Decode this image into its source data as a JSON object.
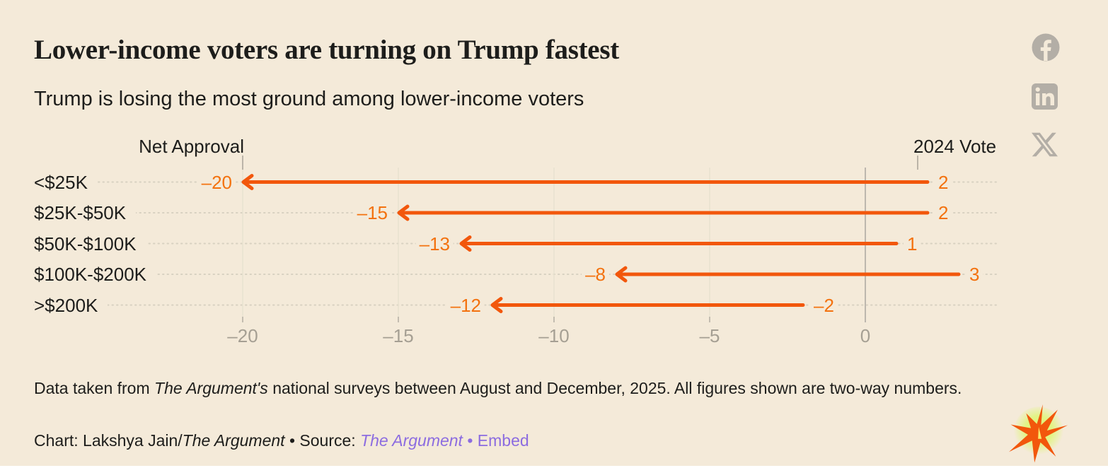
{
  "header": {
    "title": "Lower-income voters are turning on Trump fastest",
    "subtitle": "Trump is losing the most ground among lower-income voters"
  },
  "share": {
    "icons": [
      "facebook",
      "linkedin",
      "x-twitter"
    ]
  },
  "chart_data": {
    "type": "arrow",
    "title": "Lower-income voters are turning on Trump fastest",
    "subtitle": "Trump is losing the most ground among lower-income voters",
    "categories": [
      "<$25K",
      "$25K-$50K",
      "$50K-$100K",
      "$100K-$200K",
      ">$200K"
    ],
    "series": [
      {
        "name": "2024 Vote",
        "values": [
          2,
          2,
          1,
          3,
          -2
        ]
      },
      {
        "name": "Net Approval",
        "values": [
          -20,
          -15,
          -13,
          -8,
          -12
        ]
      }
    ],
    "start_label": "2024 Vote",
    "end_label": "Net Approval",
    "axis_ticks": [
      -20,
      -15,
      -10,
      -5,
      0
    ],
    "xlim": [
      -22.5,
      7.8
    ],
    "grid": true,
    "legend_position": "column-headers",
    "arrow_color": "#f2570c",
    "value_label_color": "#f3720f",
    "axis_label_color": "#a59f93"
  },
  "footer": {
    "note_segments": [
      {
        "text": "Data taken from ",
        "style": "plain"
      },
      {
        "text": "The Argument's",
        "style": "italic"
      },
      {
        "text": " national surveys between August and December, 2025. All figures shown are two-way numbers.",
        "style": "plain"
      }
    ],
    "byline_segments": [
      {
        "text": "Chart: Lakshya Jain/",
        "style": "plain"
      },
      {
        "text": "The Argument",
        "style": "italic"
      },
      {
        "text": " • Source: ",
        "style": "plain"
      },
      {
        "text": "The Argument",
        "style": "link-italic",
        "name": "source-link"
      },
      {
        "text": " • ",
        "style": "link"
      },
      {
        "text": "Embed",
        "style": "link",
        "name": "embed-link"
      }
    ]
  }
}
